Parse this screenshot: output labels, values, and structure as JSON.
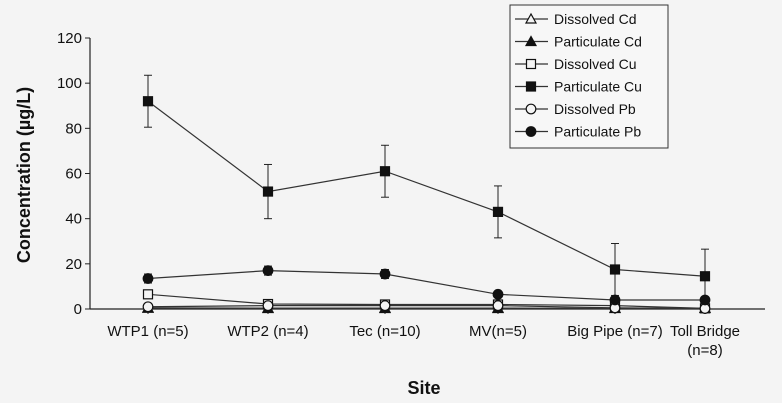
{
  "chart_data": {
    "type": "line",
    "title": "",
    "xlabel": "Site",
    "ylabel": "Concentration (µg/L)",
    "ylim": [
      0,
      120
    ],
    "yticks": [
      "0",
      "20",
      "40",
      "60",
      "80",
      "100",
      "120"
    ],
    "categories": [
      [
        "WTP1 (n=5)"
      ],
      [
        "WTP2 (n=4)"
      ],
      [
        "Tec (n=10)"
      ],
      [
        "MV(n=5)"
      ],
      [
        "Big Pipe (n=7)"
      ],
      [
        "Toll Bridge",
        "(n=8)"
      ]
    ],
    "grid": false,
    "legend_position": "top-right",
    "series": [
      {
        "name": "Dissolved Cd",
        "marker": "triangle-open",
        "values": [
          0.3,
          0.2,
          0.2,
          0.2,
          0.2,
          0.2
        ]
      },
      {
        "name": "Particulate Cd",
        "marker": "triangle-filled",
        "values": [
          0.5,
          0.4,
          0.4,
          0.4,
          0.3,
          0.3
        ]
      },
      {
        "name": "Dissolved Cu",
        "marker": "square-open",
        "values": [
          6.5,
          2.2,
          2.0,
          2.0,
          1.5,
          0.3
        ]
      },
      {
        "name": "Particulate Cu",
        "marker": "square-filled",
        "values": [
          92,
          52,
          61,
          43,
          17.5,
          14.5
        ],
        "error": [
          11.5,
          12,
          11.5,
          11.5,
          11.5,
          12
        ]
      },
      {
        "name": "Dissolved Pb",
        "marker": "circle-open",
        "values": [
          1.0,
          1.5,
          1.5,
          1.5,
          0.5,
          0.2
        ]
      },
      {
        "name": "Particulate Pb",
        "marker": "circle-filled",
        "values": [
          13.5,
          17,
          15.5,
          6.5,
          4.0,
          4.0
        ],
        "error": [
          2,
          2,
          2,
          1,
          0.5,
          0.5
        ]
      }
    ]
  }
}
